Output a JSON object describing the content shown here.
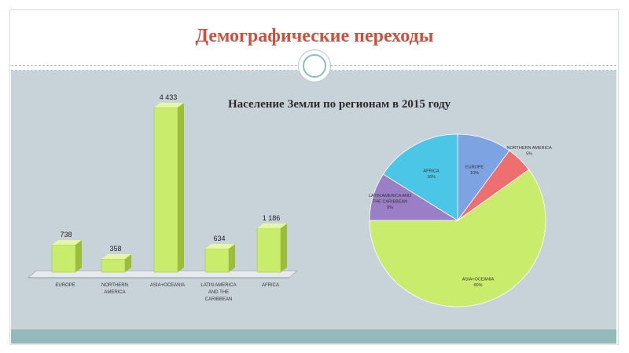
{
  "slide": {
    "title": "Демографические переходы"
  },
  "colors": {
    "title": "#c8523f",
    "band": "#c8d3d9",
    "bottom_bar": "#93b9b9",
    "bar_front": "#c9ec6c",
    "bar_top": "#e3f7a6",
    "bar_side": "#9cbd3c"
  },
  "chart_data": [
    {
      "type": "bar",
      "style": "3d",
      "title": "",
      "categories": [
        "EUROPE",
        "NORTHERN AMERICA",
        "ASIA+OCEANIA",
        "LATIN AMERICA AND THE CARIBBEAN",
        "AFRICA"
      ],
      "category_labels": [
        [
          "EUROPE"
        ],
        [
          "NORTHERN",
          "AMERICA"
        ],
        [
          "ASIA+OCEANIA"
        ],
        [
          "LATIN AMERICA",
          "AND THE",
          "CARIBBEAN"
        ],
        [
          "AFRICA"
        ]
      ],
      "values": [
        738,
        358,
        4433,
        634,
        1186
      ],
      "value_labels": [
        "738",
        "358",
        "4 433",
        "634",
        "1 186"
      ],
      "ylim": [
        0,
        4433
      ],
      "grid": false,
      "legend": "none"
    },
    {
      "type": "pie",
      "title": "Население Земли по регионам в 2015 году",
      "slices": [
        {
          "category": "EUROPE",
          "value": 10,
          "label": [
            "EUROPE",
            "10%"
          ],
          "color": "#7da3e3"
        },
        {
          "category": "NORTHERN AMERICA",
          "value": 5,
          "label": [
            "NORTHERN AMERICA",
            "5%"
          ],
          "color": "#ee6f6f"
        },
        {
          "category": "ASIA+OCEANIA",
          "value": 60,
          "label": [
            "ASIA+OCEANIA",
            "60%"
          ],
          "color": "#c9ec6c"
        },
        {
          "category": "LATIN AMERICA AND THE CARIBBEAN",
          "value": 9,
          "label": [
            "LATIN AMERICA AND",
            "THE CARIBBEAN",
            "9%"
          ],
          "color": "#9b7fc6"
        },
        {
          "category": "AFRICA",
          "value": 16,
          "label": [
            "AFRICA",
            "16%"
          ],
          "color": "#4cc6e6"
        }
      ],
      "start_angle_deg": 0,
      "legend": "none"
    }
  ]
}
